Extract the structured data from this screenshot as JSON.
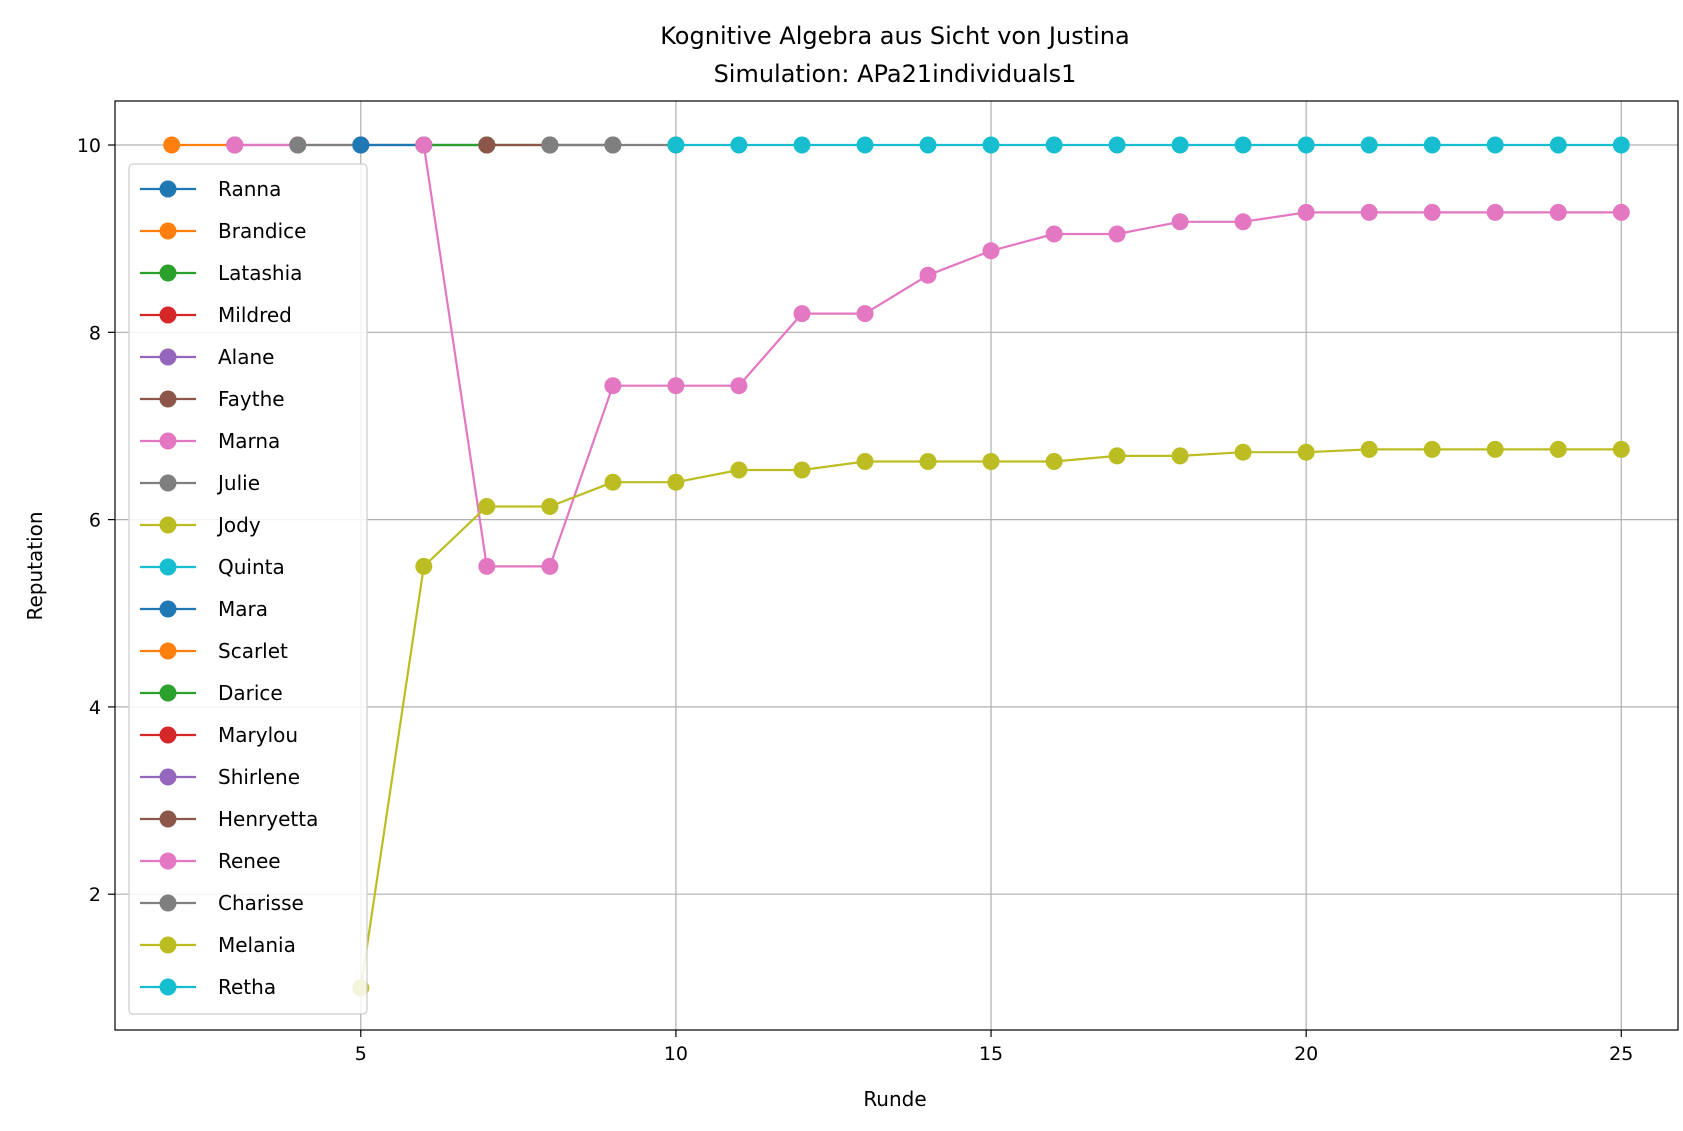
{
  "chart_data": {
    "type": "line",
    "title": "Kognitive Algebra aus Sicht von Justina",
    "subtitle": "Simulation: APa21individuals1",
    "xlabel": "Runde",
    "ylabel": "Reputation",
    "xlim": [
      1.1,
      25.9
    ],
    "ylim": [
      0.55,
      10.47
    ],
    "xticks": [
      5,
      10,
      15,
      20,
      25
    ],
    "yticks": [
      2,
      4,
      6,
      8,
      10
    ],
    "grid": true,
    "legend_position": "left",
    "series": [
      {
        "name": "Ranna",
        "color": "#1f77b4",
        "x": [],
        "y": []
      },
      {
        "name": "Brandice",
        "color": "#ff7f0e",
        "x": [
          2,
          3
        ],
        "y": [
          10,
          10
        ]
      },
      {
        "name": "Latashia",
        "color": "#2ca02c",
        "x": [],
        "y": []
      },
      {
        "name": "Mildred",
        "color": "#d62728",
        "x": [],
        "y": []
      },
      {
        "name": "Alane",
        "color": "#9467bd",
        "x": [
          3,
          4
        ],
        "y": [
          10,
          10
        ]
      },
      {
        "name": "Faythe",
        "color": "#8c564b",
        "x": [],
        "y": []
      },
      {
        "name": "Marna",
        "color": "#e377c2",
        "x": [
          3,
          4,
          5
        ],
        "y": [
          10,
          10,
          10
        ]
      },
      {
        "name": "Julie",
        "color": "#7f7f7f",
        "x": [
          4,
          5,
          6
        ],
        "y": [
          10,
          10,
          10
        ]
      },
      {
        "name": "Jody",
        "color": "#bcbd22",
        "x": [],
        "y": []
      },
      {
        "name": "Quinta",
        "color": "#17becf",
        "x": [],
        "y": []
      },
      {
        "name": "Mara",
        "color": "#1f77b4",
        "x": [
          5,
          6,
          7
        ],
        "y": [
          10,
          10,
          10
        ]
      },
      {
        "name": "Scarlet",
        "color": "#ff7f0e",
        "x": [],
        "y": []
      },
      {
        "name": "Darice",
        "color": "#2ca02c",
        "x": [
          6,
          7,
          8
        ],
        "y": [
          10,
          10,
          10
        ]
      },
      {
        "name": "Marylou",
        "color": "#d62728",
        "x": [],
        "y": []
      },
      {
        "name": "Shirlene",
        "color": "#9467bd",
        "x": [],
        "y": []
      },
      {
        "name": "Henryetta",
        "color": "#8c564b",
        "x": [
          7,
          8,
          9
        ],
        "y": [
          10,
          10,
          10
        ]
      },
      {
        "name": "Renee",
        "color": "#e377c2",
        "x": [
          6,
          7,
          8,
          9,
          10,
          11,
          12,
          13,
          14,
          15,
          16,
          17,
          18,
          19,
          20,
          21,
          22,
          23,
          24,
          25
        ],
        "y": [
          10,
          5.5,
          5.5,
          7.43,
          7.43,
          7.43,
          8.2,
          8.2,
          8.61,
          8.87,
          9.05,
          9.05,
          9.18,
          9.18,
          9.28,
          9.28,
          9.28,
          9.28,
          9.28,
          9.28
        ]
      },
      {
        "name": "Charisse",
        "color": "#7f7f7f",
        "x": [
          8,
          9,
          10
        ],
        "y": [
          10,
          10,
          10
        ]
      },
      {
        "name": "Melania",
        "color": "#bcbd22",
        "x": [
          5,
          6,
          7,
          8,
          9,
          10,
          11,
          12,
          13,
          14,
          15,
          16,
          17,
          18,
          19,
          20,
          21,
          22,
          23,
          24,
          25
        ],
        "y": [
          1.0,
          5.5,
          6.14,
          6.14,
          6.4,
          6.4,
          6.53,
          6.53,
          6.62,
          6.62,
          6.62,
          6.62,
          6.68,
          6.68,
          6.72,
          6.72,
          6.75,
          6.75,
          6.75,
          6.75,
          6.75
        ]
      },
      {
        "name": "Retha",
        "color": "#17becf",
        "x": [
          10,
          11,
          12,
          13,
          14,
          15,
          16,
          17,
          18,
          19,
          20,
          21,
          22,
          23,
          24,
          25
        ],
        "y": [
          10,
          10,
          10,
          10,
          10,
          10,
          10,
          10,
          10,
          10,
          10,
          10,
          10,
          10,
          10,
          10
        ]
      }
    ]
  }
}
